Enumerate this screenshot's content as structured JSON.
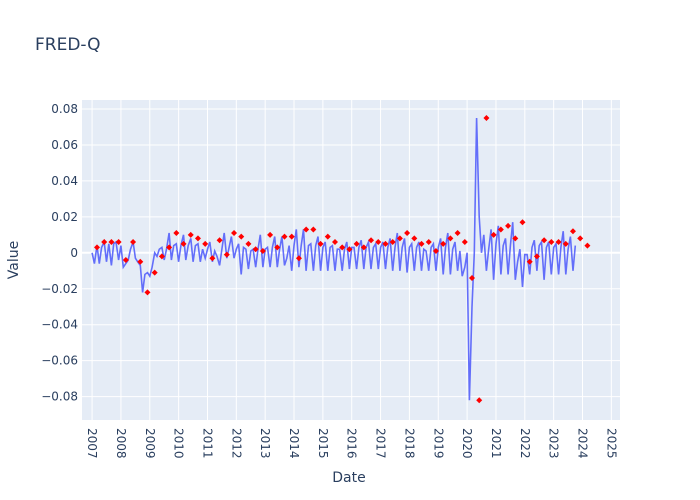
{
  "chart_data": {
    "type": "line",
    "title": "FRED-Q",
    "xlabel": "Date",
    "ylabel": "Value",
    "xlim": [
      2006.65,
      2025.3
    ],
    "ylim": [
      -0.093,
      0.085
    ],
    "x_ticks": [
      "2007",
      "2008",
      "2009",
      "2010",
      "2011",
      "2012",
      "2013",
      "2014",
      "2015",
      "2016",
      "2017",
      "2018",
      "2019",
      "2020",
      "2021",
      "2022",
      "2023",
      "2024",
      "2025"
    ],
    "y_ticks": [
      0.08,
      0.06,
      0.04,
      0.02,
      0,
      -0.02,
      -0.04,
      -0.06,
      -0.08
    ],
    "y_tick_labels": [
      "0.08",
      "0.06",
      "0.04",
      "0.02",
      "0",
      "−0.02",
      "−0.04",
      "−0.06",
      "−0.08"
    ],
    "grid": true,
    "colors": {
      "line": "#636efa",
      "markers": "#ff0000",
      "plot_bg": "#e5ecf6"
    },
    "series": [
      {
        "values": [
          [
            2007.0,
            0.0
          ],
          [
            2007.08,
            -0.006
          ],
          [
            2007.17,
            0.004
          ],
          [
            2007.25,
            -0.006
          ],
          [
            2007.33,
            0.003
          ],
          [
            2007.42,
            0.006
          ],
          [
            2007.5,
            -0.005
          ],
          [
            2007.58,
            0.005
          ],
          [
            2007.67,
            -0.007
          ],
          [
            2007.75,
            0.005
          ],
          [
            2007.83,
            0.006
          ],
          [
            2007.92,
            -0.004
          ],
          [
            2008.0,
            0.004
          ],
          [
            2008.08,
            -0.008
          ],
          [
            2008.17,
            -0.006
          ],
          [
            2008.25,
            -0.004
          ],
          [
            2008.33,
            0.002
          ],
          [
            2008.42,
            0.006
          ],
          [
            2008.5,
            -0.003
          ],
          [
            2008.58,
            -0.005
          ],
          [
            2008.67,
            -0.007
          ],
          [
            2008.75,
            -0.022
          ],
          [
            2008.83,
            -0.012
          ],
          [
            2008.92,
            -0.011
          ],
          [
            2009.0,
            -0.013
          ],
          [
            2009.08,
            -0.008
          ],
          [
            2009.17,
            0.0
          ],
          [
            2009.25,
            -0.002
          ],
          [
            2009.33,
            0.002
          ],
          [
            2009.42,
            0.003
          ],
          [
            2009.5,
            -0.004
          ],
          [
            2009.58,
            0.002
          ],
          [
            2009.67,
            0.011
          ],
          [
            2009.75,
            -0.004
          ],
          [
            2009.83,
            0.004
          ],
          [
            2009.92,
            0.005
          ],
          [
            2010.0,
            -0.005
          ],
          [
            2010.08,
            0.004
          ],
          [
            2010.17,
            0.01
          ],
          [
            2010.25,
            -0.004
          ],
          [
            2010.33,
            0.004
          ],
          [
            2010.42,
            0.008
          ],
          [
            2010.5,
            -0.005
          ],
          [
            2010.58,
            0.004
          ],
          [
            2010.67,
            0.005
          ],
          [
            2010.75,
            -0.005
          ],
          [
            2010.83,
            0.002
          ],
          [
            2010.92,
            -0.003
          ],
          [
            2011.0,
            0.002
          ],
          [
            2011.08,
            0.006
          ],
          [
            2011.17,
            -0.005
          ],
          [
            2011.25,
            0.001
          ],
          [
            2011.33,
            -0.002
          ],
          [
            2011.42,
            -0.007
          ],
          [
            2011.5,
            0.002
          ],
          [
            2011.58,
            0.011
          ],
          [
            2011.67,
            -0.003
          ],
          [
            2011.75,
            0.003
          ],
          [
            2011.83,
            0.009
          ],
          [
            2011.92,
            -0.003
          ],
          [
            2012.0,
            0.002
          ],
          [
            2012.08,
            0.005
          ],
          [
            2012.17,
            -0.012
          ],
          [
            2012.25,
            0.003
          ],
          [
            2012.33,
            0.002
          ],
          [
            2012.42,
            -0.009
          ],
          [
            2012.5,
            0.001
          ],
          [
            2012.58,
            0.002
          ],
          [
            2012.67,
            -0.008
          ],
          [
            2012.75,
            0.002
          ],
          [
            2012.83,
            0.01
          ],
          [
            2012.92,
            -0.008
          ],
          [
            2013.0,
            0.002
          ],
          [
            2013.08,
            0.003
          ],
          [
            2013.17,
            -0.008
          ],
          [
            2013.25,
            0.003
          ],
          [
            2013.33,
            0.009
          ],
          [
            2013.42,
            -0.008
          ],
          [
            2013.5,
            0.002
          ],
          [
            2013.58,
            0.009
          ],
          [
            2013.67,
            -0.007
          ],
          [
            2013.75,
            -0.003
          ],
          [
            2013.83,
            0.004
          ],
          [
            2013.92,
            -0.01
          ],
          [
            2014.0,
            0.004
          ],
          [
            2014.08,
            0.013
          ],
          [
            2014.17,
            -0.008
          ],
          [
            2014.25,
            0.004
          ],
          [
            2014.33,
            0.013
          ],
          [
            2014.42,
            -0.01
          ],
          [
            2014.5,
            0.004
          ],
          [
            2014.58,
            0.005
          ],
          [
            2014.67,
            -0.01
          ],
          [
            2014.75,
            0.004
          ],
          [
            2014.83,
            0.009
          ],
          [
            2014.92,
            -0.01
          ],
          [
            2015.0,
            0.003
          ],
          [
            2015.08,
            0.006
          ],
          [
            2015.17,
            -0.01
          ],
          [
            2015.25,
            0.003
          ],
          [
            2015.33,
            0.004
          ],
          [
            2015.42,
            -0.01
          ],
          [
            2015.5,
            0.002
          ],
          [
            2015.58,
            0.002
          ],
          [
            2015.67,
            -0.01
          ],
          [
            2015.75,
            0.002
          ],
          [
            2015.83,
            0.006
          ],
          [
            2015.92,
            -0.009
          ],
          [
            2016.0,
            0.003
          ],
          [
            2016.08,
            0.003
          ],
          [
            2016.17,
            -0.009
          ],
          [
            2016.25,
            0.003
          ],
          [
            2016.33,
            0.007
          ],
          [
            2016.42,
            -0.009
          ],
          [
            2016.5,
            0.003
          ],
          [
            2016.58,
            0.006
          ],
          [
            2016.67,
            -0.009
          ],
          [
            2016.75,
            0.003
          ],
          [
            2016.83,
            0.005
          ],
          [
            2016.92,
            -0.009
          ],
          [
            2017.0,
            0.003
          ],
          [
            2017.08,
            0.006
          ],
          [
            2017.17,
            -0.009
          ],
          [
            2017.25,
            0.003
          ],
          [
            2017.33,
            0.008
          ],
          [
            2017.42,
            -0.01
          ],
          [
            2017.5,
            0.003
          ],
          [
            2017.58,
            0.011
          ],
          [
            2017.67,
            -0.01
          ],
          [
            2017.75,
            0.003
          ],
          [
            2017.83,
            0.008
          ],
          [
            2017.92,
            -0.011
          ],
          [
            2018.0,
            0.003
          ],
          [
            2018.08,
            0.005
          ],
          [
            2018.17,
            -0.01
          ],
          [
            2018.25,
            0.003
          ],
          [
            2018.33,
            0.006
          ],
          [
            2018.42,
            -0.01
          ],
          [
            2018.5,
            0.002
          ],
          [
            2018.58,
            0.001
          ],
          [
            2018.67,
            -0.01
          ],
          [
            2018.75,
            0.003
          ],
          [
            2018.83,
            0.005
          ],
          [
            2018.92,
            -0.01
          ],
          [
            2019.0,
            0.003
          ],
          [
            2019.08,
            0.008
          ],
          [
            2019.17,
            -0.012
          ],
          [
            2019.25,
            0.003
          ],
          [
            2019.33,
            0.011
          ],
          [
            2019.42,
            -0.012
          ],
          [
            2019.5,
            0.002
          ],
          [
            2019.58,
            0.006
          ],
          [
            2019.67,
            -0.01
          ],
          [
            2019.75,
            0.001
          ],
          [
            2019.83,
            -0.013
          ],
          [
            2019.92,
            -0.008
          ],
          [
            2020.0,
            0.0
          ],
          [
            2020.08,
            -0.082
          ],
          [
            2020.17,
            -0.03
          ],
          [
            2020.25,
            0.0
          ],
          [
            2020.33,
            0.075
          ],
          [
            2020.42,
            0.02
          ],
          [
            2020.5,
            0.0
          ],
          [
            2020.58,
            0.01
          ],
          [
            2020.67,
            -0.01
          ],
          [
            2020.75,
            0.002
          ],
          [
            2020.83,
            0.013
          ],
          [
            2020.92,
            -0.015
          ],
          [
            2021.0,
            0.005
          ],
          [
            2021.08,
            0.015
          ],
          [
            2021.17,
            -0.012
          ],
          [
            2021.25,
            0.004
          ],
          [
            2021.33,
            0.008
          ],
          [
            2021.42,
            -0.012
          ],
          [
            2021.5,
            0.004
          ],
          [
            2021.58,
            0.017
          ],
          [
            2021.67,
            -0.015
          ],
          [
            2021.75,
            -0.005
          ],
          [
            2021.83,
            0.002
          ],
          [
            2021.92,
            -0.019
          ],
          [
            2022.0,
            -0.001
          ],
          [
            2022.08,
            -0.001
          ],
          [
            2022.17,
            -0.012
          ],
          [
            2022.25,
            0.003
          ],
          [
            2022.33,
            0.007
          ],
          [
            2022.42,
            -0.01
          ],
          [
            2022.5,
            0.004
          ],
          [
            2022.58,
            0.006
          ],
          [
            2022.67,
            -0.015
          ],
          [
            2022.75,
            0.003
          ],
          [
            2022.83,
            0.006
          ],
          [
            2022.92,
            -0.012
          ],
          [
            2023.0,
            0.003
          ],
          [
            2023.08,
            0.005
          ],
          [
            2023.17,
            -0.012
          ],
          [
            2023.25,
            0.003
          ],
          [
            2023.33,
            0.012
          ],
          [
            2023.42,
            -0.012
          ],
          [
            2023.5,
            0.002
          ],
          [
            2023.58,
            0.009
          ],
          [
            2023.67,
            -0.01
          ],
          [
            2023.75,
            0.004
          ]
        ],
        "marker_points": [
          [
            2007.17,
            0.003
          ],
          [
            2007.42,
            0.006
          ],
          [
            2007.67,
            0.006
          ],
          [
            2007.92,
            0.006
          ],
          [
            2008.17,
            -0.004
          ],
          [
            2008.42,
            0.006
          ],
          [
            2008.67,
            -0.005
          ],
          [
            2008.92,
            -0.022
          ],
          [
            2009.17,
            -0.011
          ],
          [
            2009.42,
            -0.002
          ],
          [
            2009.67,
            0.003
          ],
          [
            2009.92,
            0.011
          ],
          [
            2010.17,
            0.005
          ],
          [
            2010.42,
            0.01
          ],
          [
            2010.67,
            0.008
          ],
          [
            2010.92,
            0.005
          ],
          [
            2011.17,
            -0.003
          ],
          [
            2011.42,
            0.007
          ],
          [
            2011.67,
            -0.001
          ],
          [
            2011.92,
            0.011
          ],
          [
            2012.17,
            0.009
          ],
          [
            2012.42,
            0.005
          ],
          [
            2012.67,
            0.002
          ],
          [
            2012.92,
            0.001
          ],
          [
            2013.17,
            0.01
          ],
          [
            2013.42,
            0.003
          ],
          [
            2013.67,
            0.009
          ],
          [
            2013.92,
            0.009
          ],
          [
            2014.17,
            -0.003
          ],
          [
            2014.42,
            0.013
          ],
          [
            2014.67,
            0.013
          ],
          [
            2014.92,
            0.005
          ],
          [
            2015.17,
            0.009
          ],
          [
            2015.42,
            0.006
          ],
          [
            2015.67,
            0.003
          ],
          [
            2015.92,
            0.002
          ],
          [
            2016.17,
            0.005
          ],
          [
            2016.42,
            0.003
          ],
          [
            2016.67,
            0.007
          ],
          [
            2016.92,
            0.006
          ],
          [
            2017.17,
            0.005
          ],
          [
            2017.42,
            0.006
          ],
          [
            2017.67,
            0.008
          ],
          [
            2017.92,
            0.011
          ],
          [
            2018.17,
            0.008
          ],
          [
            2018.42,
            0.005
          ],
          [
            2018.67,
            0.006
          ],
          [
            2018.92,
            0.001
          ],
          [
            2019.17,
            0.005
          ],
          [
            2019.42,
            0.008
          ],
          [
            2019.67,
            0.011
          ],
          [
            2019.92,
            0.006
          ],
          [
            2020.17,
            -0.014
          ],
          [
            2020.42,
            -0.082
          ],
          [
            2020.67,
            0.075
          ],
          [
            2020.92,
            0.01
          ],
          [
            2021.17,
            0.013
          ],
          [
            2021.42,
            0.015
          ],
          [
            2021.67,
            0.008
          ],
          [
            2021.92,
            0.017
          ],
          [
            2022.17,
            -0.005
          ],
          [
            2022.42,
            -0.002
          ],
          [
            2022.67,
            0.007
          ],
          [
            2022.92,
            0.006
          ],
          [
            2023.17,
            0.006
          ],
          [
            2023.42,
            0.005
          ],
          [
            2023.67,
            0.012
          ],
          [
            2023.92,
            0.008
          ],
          [
            2024.17,
            0.004
          ]
        ]
      }
    ]
  }
}
